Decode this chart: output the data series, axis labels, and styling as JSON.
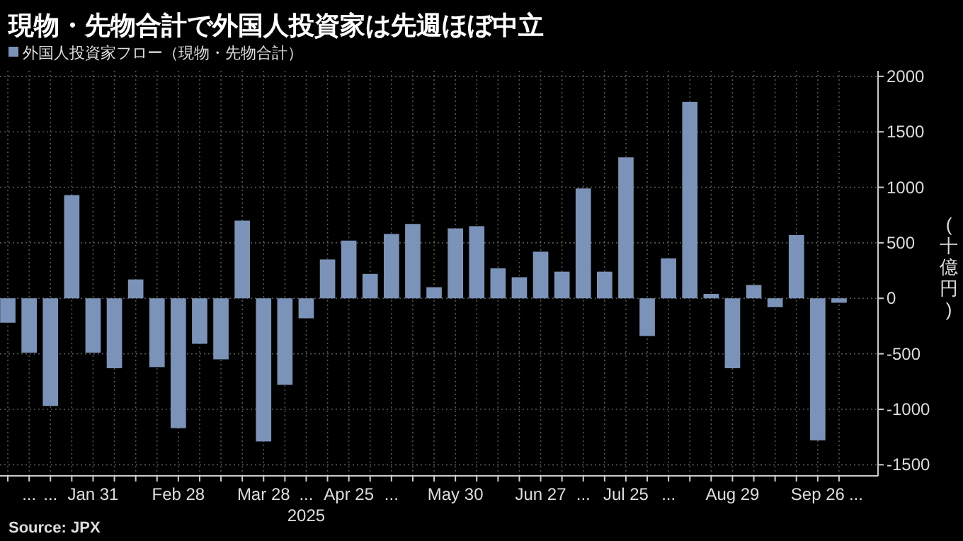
{
  "chart_data": {
    "type": "bar",
    "title": "現物・先物合計で外国人投資家は先週ほぼ中立",
    "xlabel": "2025",
    "ylabel": "(十億円)",
    "annotations": [
      "Source: JPX"
    ],
    "categories": [
      null,
      "...",
      "...",
      null,
      "Jan 31",
      null,
      null,
      null,
      "Feb 28",
      null,
      null,
      null,
      "Mar 28",
      null,
      "...",
      null,
      "Apr 25",
      null,
      "...",
      null,
      null,
      "May 30",
      null,
      null,
      null,
      "Jun 27",
      null,
      "...",
      null,
      "Jul 25",
      null,
      "...",
      null,
      null,
      "Aug 29",
      null,
      null,
      null,
      "Sep 26",
      "..."
    ],
    "series": [
      {
        "name": "外国人投資家フロー（現物・先物合計）",
        "color": "#7b93b8",
        "values": [
          -220,
          -490,
          -970,
          930,
          -490,
          -630,
          170,
          -620,
          -1170,
          -410,
          -550,
          700,
          -1290,
          -780,
          -180,
          350,
          520,
          220,
          580,
          670,
          100,
          630,
          650,
          270,
          190,
          420,
          240,
          990,
          240,
          1270,
          -340,
          360,
          1770,
          40,
          -630,
          120,
          -80,
          570,
          -1280,
          -40
        ]
      }
    ],
    "ylim": [
      -1600,
      2050
    ],
    "yticks": [
      -1500,
      -1000,
      -500,
      0,
      500,
      1000,
      1500,
      2000
    ],
    "grid": true,
    "legend": "top left"
  }
}
